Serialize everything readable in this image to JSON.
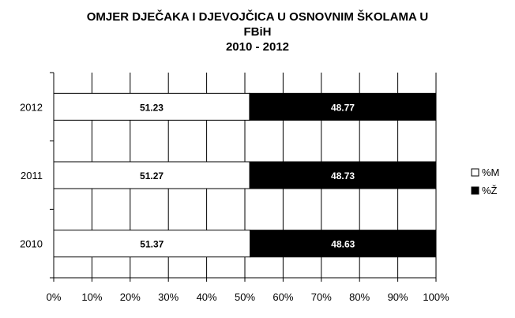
{
  "chart_data": {
    "type": "bar",
    "orientation": "horizontal",
    "stacked": "percent",
    "title_lines": [
      "OMJER DJEČAKA I DJEVOJČICA U OSNOVNIM ŠKOLAMA U",
      "FBiH",
      "2010 - 2012"
    ],
    "categories": [
      "2012",
      "2011",
      "2010"
    ],
    "series": [
      {
        "name": "%M",
        "values": [
          51.23,
          51.27,
          51.37
        ],
        "color": "#ffffff",
        "label_color": "#000000"
      },
      {
        "name": "%Ž",
        "values": [
          48.77,
          48.73,
          48.63
        ],
        "color": "#000000",
        "label_color": "#ffffff"
      }
    ],
    "x_ticks": [
      "0%",
      "10%",
      "20%",
      "30%",
      "40%",
      "50%",
      "60%",
      "70%",
      "80%",
      "90%",
      "100%"
    ],
    "xlim": [
      0,
      100
    ],
    "grid": "vertical",
    "legend_position": "right"
  }
}
